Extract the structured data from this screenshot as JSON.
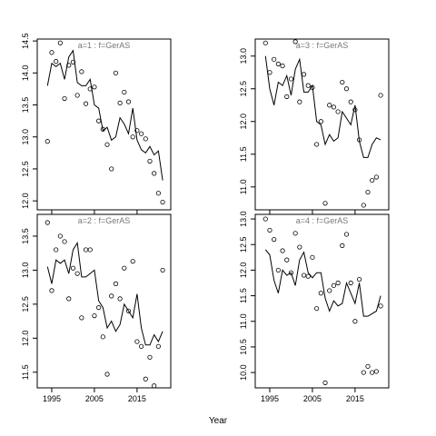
{
  "x_label": "Year",
  "chart_data": [
    {
      "type": "scatter_line",
      "title": "a=1  :  f=GerAS",
      "x": [
        1994,
        1995,
        1996,
        1997,
        1998,
        1999,
        2000,
        2001,
        2002,
        2003,
        2004,
        2005,
        2006,
        2007,
        2008,
        2009,
        2010,
        2011,
        2012,
        2013,
        2014,
        2015,
        2016,
        2017,
        2018,
        2019,
        2020,
        2021
      ],
      "points": [
        12.93,
        14.32,
        14.18,
        14.47,
        13.6,
        14.12,
        14.17,
        13.65,
        14.02,
        13.52,
        13.75,
        13.78,
        13.25,
        13.12,
        12.88,
        12.5,
        14.0,
        13.53,
        13.7,
        13.55,
        13.0,
        13.1,
        13.05,
        12.97,
        12.62,
        12.43,
        12.12,
        11.98
      ],
      "line": [
        13.8,
        14.15,
        14.1,
        14.15,
        13.9,
        14.25,
        14.35,
        13.85,
        13.8,
        13.8,
        13.9,
        13.5,
        13.45,
        13.1,
        13.15,
        12.95,
        13.0,
        13.3,
        13.2,
        13.05,
        13.45,
        12.95,
        12.8,
        12.75,
        12.85,
        12.72,
        12.78,
        12.32
      ],
      "color": "#000000",
      "xlim": [
        1991.6,
        2022.9
      ],
      "ylim": [
        11.86,
        14.53
      ],
      "xticks": [
        1995,
        2005,
        2015
      ],
      "yticks": [
        {
          "value": 12,
          "label": "12.0"
        },
        12.5,
        {
          "value": 13,
          "label": "13.0"
        },
        13.5,
        {
          "value": 14,
          "label": "14.0"
        },
        14.5
      ]
    },
    {
      "type": "scatter_line",
      "title": "a=3  :  f=GerAS",
      "x": [
        1994,
        1995,
        1996,
        1997,
        1998,
        1999,
        2000,
        2001,
        2002,
        2003,
        2004,
        2005,
        2006,
        2007,
        2008,
        2009,
        2010,
        2011,
        2012,
        2013,
        2014,
        2015,
        2016,
        2017,
        2018,
        2019,
        2020,
        2021
      ],
      "points": [
        13.2,
        12.75,
        12.95,
        12.88,
        12.85,
        12.38,
        12.65,
        13.22,
        12.3,
        12.72,
        12.55,
        12.52,
        11.65,
        12.0,
        10.75,
        12.25,
        12.22,
        12.15,
        12.6,
        12.5,
        12.3,
        12.18,
        11.72,
        10.72,
        10.92,
        11.1,
        11.15,
        12.4
      ],
      "line": [
        13.0,
        12.5,
        12.25,
        12.6,
        12.55,
        12.7,
        12.4,
        12.8,
        12.95,
        12.45,
        12.45,
        12.55,
        12.0,
        11.95,
        11.65,
        11.8,
        11.7,
        11.75,
        12.15,
        12.05,
        11.95,
        12.25,
        11.7,
        11.45,
        11.45,
        11.65,
        11.75,
        11.72
      ],
      "color": "#000000",
      "xlim": [
        1991.6,
        2022.9
      ],
      "ylim": [
        10.65,
        13.26
      ],
      "xticks": [
        1995,
        2005,
        2015
      ],
      "yticks": [
        {
          "value": 11,
          "label": "11.0"
        },
        11.5,
        {
          "value": 12,
          "label": "12.0"
        },
        12.5,
        {
          "value": 13,
          "label": "13.0"
        }
      ]
    },
    {
      "type": "scatter_line",
      "title": "a=2  :  f=GerAS",
      "x": [
        1994,
        1995,
        1996,
        1997,
        1998,
        1999,
        2000,
        2001,
        2002,
        2003,
        2004,
        2005,
        2006,
        2007,
        2008,
        2009,
        2010,
        2011,
        2012,
        2013,
        2014,
        2015,
        2016,
        2017,
        2018,
        2019,
        2020,
        2021
      ],
      "points": [
        13.7,
        12.7,
        13.3,
        13.5,
        13.42,
        12.58,
        13.03,
        12.95,
        12.3,
        13.3,
        13.3,
        12.33,
        12.45,
        12.02,
        11.47,
        12.62,
        12.8,
        12.58,
        13.03,
        12.4,
        13.13,
        11.95,
        11.88,
        11.4,
        11.72,
        11.3,
        11.88,
        13.0
      ],
      "line": [
        13.05,
        12.8,
        13.15,
        13.1,
        13.15,
        12.95,
        13.3,
        13.4,
        12.9,
        12.9,
        12.95,
        13.0,
        12.55,
        12.45,
        12.15,
        12.25,
        12.1,
        12.2,
        12.5,
        12.4,
        12.3,
        12.65,
        12.15,
        11.9,
        11.9,
        12.05,
        11.95,
        12.1
      ],
      "color": "#000000",
      "xlim": [
        1991.6,
        2022.9
      ],
      "ylim": [
        11.27,
        13.82
      ],
      "xticks": [
        1995,
        2005,
        2015
      ],
      "yticks": [
        11.5,
        {
          "value": 12,
          "label": "12.0"
        },
        12.5,
        {
          "value": 13,
          "label": "13.0"
        },
        13.5
      ]
    },
    {
      "type": "scatter_line",
      "title": "a=4  :  f=GerAS",
      "x": [
        1994,
        1995,
        1996,
        1997,
        1998,
        1999,
        2000,
        2001,
        2002,
        2003,
        2004,
        2005,
        2006,
        2007,
        2008,
        2009,
        2010,
        2011,
        2012,
        2013,
        2014,
        2015,
        2016,
        2017,
        2018,
        2019,
        2020,
        2021
      ],
      "points": [
        13.0,
        12.78,
        12.6,
        12.0,
        12.38,
        12.2,
        11.95,
        12.72,
        12.45,
        11.9,
        11.88,
        12.25,
        11.25,
        11.55,
        9.8,
        11.6,
        11.7,
        11.75,
        12.48,
        12.7,
        11.75,
        11.0,
        11.82,
        10.0,
        10.12,
        10.0,
        10.02,
        11.3
      ],
      "line": [
        12.4,
        12.3,
        11.8,
        11.55,
        12.0,
        11.9,
        11.95,
        11.7,
        12.2,
        12.35,
        11.95,
        11.85,
        11.95,
        11.95,
        11.45,
        11.2,
        11.4,
        11.3,
        11.35,
        11.75,
        11.55,
        11.35,
        11.75,
        11.1,
        11.1,
        11.15,
        11.2,
        11.5
      ],
      "color": "#000000",
      "xlim": [
        1991.6,
        2022.9
      ],
      "ylim": [
        9.7,
        13.09
      ],
      "xticks": [
        1995,
        2005,
        2015
      ],
      "yticks": [
        {
          "value": 10,
          "label": "10.0"
        },
        10.5,
        {
          "value": 11,
          "label": "11.0"
        },
        11.5,
        {
          "value": 12,
          "label": "12.0"
        },
        12.5,
        {
          "value": 13,
          "label": "13.0"
        }
      ]
    }
  ]
}
